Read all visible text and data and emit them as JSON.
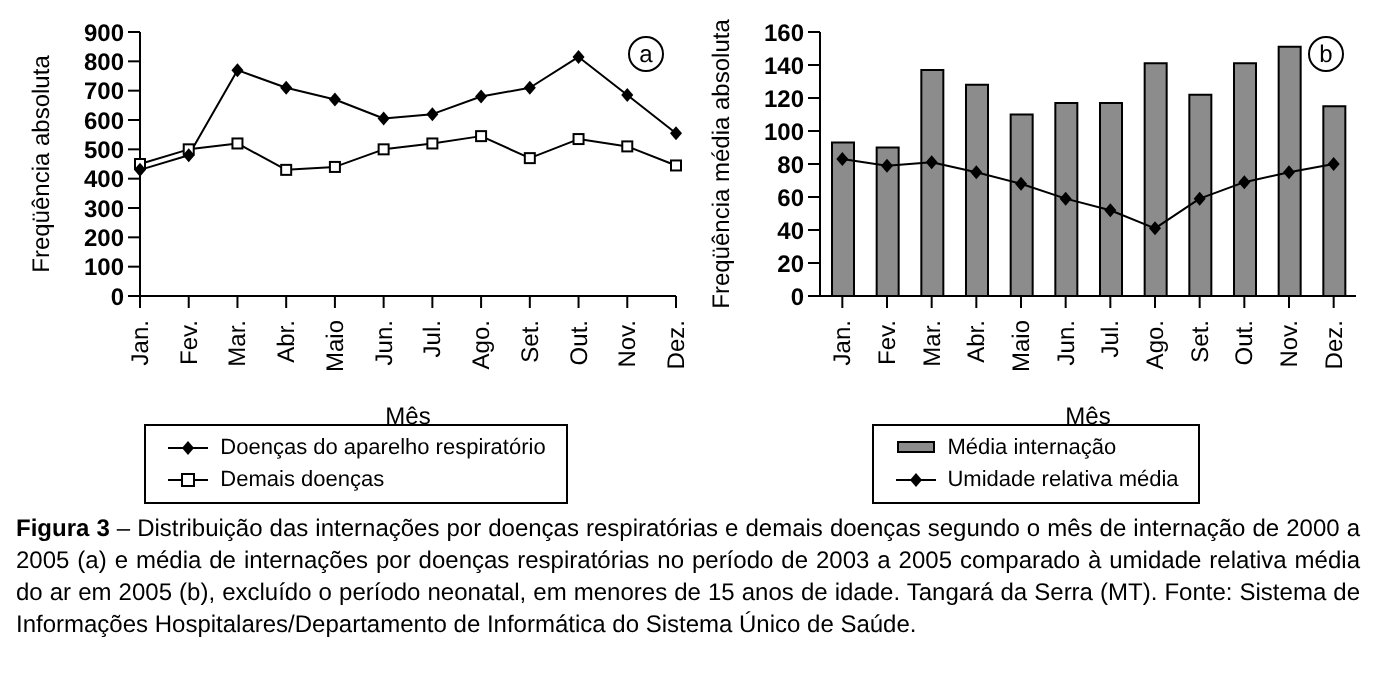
{
  "chart_data": [
    {
      "type": "line",
      "xlabel": "Mês",
      "ylabel": "Freqüência absoluta",
      "annotations": [
        "a"
      ],
      "categories": [
        "Jan.",
        "Fev.",
        "Mar.",
        "Abr.",
        "Maio",
        "Jun.",
        "Jul.",
        "Ago.",
        "Set.",
        "Out.",
        "Nov.",
        "Dez."
      ],
      "series": [
        {
          "name": "Doenças do aparelho respiratório",
          "color": "#000000",
          "marker": "diamond",
          "values": [
            430,
            480,
            770,
            710,
            670,
            605,
            620,
            680,
            710,
            815,
            685,
            555
          ]
        },
        {
          "name": "Demais doenças",
          "color": "#000000",
          "marker": "square",
          "values": [
            450,
            500,
            520,
            430,
            440,
            500,
            520,
            545,
            470,
            535,
            510,
            445
          ]
        }
      ],
      "ylim": [
        0,
        900
      ],
      "yticks": [
        0,
        100,
        200,
        300,
        400,
        500,
        600,
        700,
        800,
        900
      ],
      "legend": "bottom"
    },
    {
      "type": "bar",
      "xlabel": "Mês",
      "ylabel": "Freqüência média absoluta",
      "annotations": [
        "b"
      ],
      "categories": [
        "Jan.",
        "Fev.",
        "Mar.",
        "Abr.",
        "Maio",
        "Jun.",
        "Jul.",
        "Ago.",
        "Set.",
        "Out.",
        "Nov.",
        "Dez."
      ],
      "series": [
        {
          "name": "Média internação",
          "color": "#8c8c8c",
          "values": [
            93,
            90,
            137,
            128,
            110,
            117,
            117,
            141,
            122,
            141,
            151,
            115
          ]
        },
        {
          "name": "Umidade relativa média",
          "type": "line",
          "color": "#000000",
          "marker": "diamond",
          "values": [
            83,
            79,
            81,
            75,
            68,
            59,
            52,
            41,
            59,
            69,
            75,
            80
          ]
        }
      ],
      "ylim": [
        0,
        160
      ],
      "yticks": [
        0,
        20,
        40,
        60,
        80,
        100,
        120,
        140,
        160
      ],
      "legend": "bottom"
    },
    {
      "type": "other",
      "annotations": [
        "Figura 3 – Distribuição das internações por doenças respiratórias e demais doenças segundo o mês de internação de 2000 a 2005 (a) e média de internações por doenças respiratórias no período de 2003 a 2005 comparado à umidade relativa média do ar em 2005 (b), excluído o período neonatal, em menores de 15 anos de idade. Tangará da Serra (MT). Fonte: Sistema de Informações Hospitalares/Departamento de Informática do Sistema Único de Saúde."
      ]
    }
  ]
}
